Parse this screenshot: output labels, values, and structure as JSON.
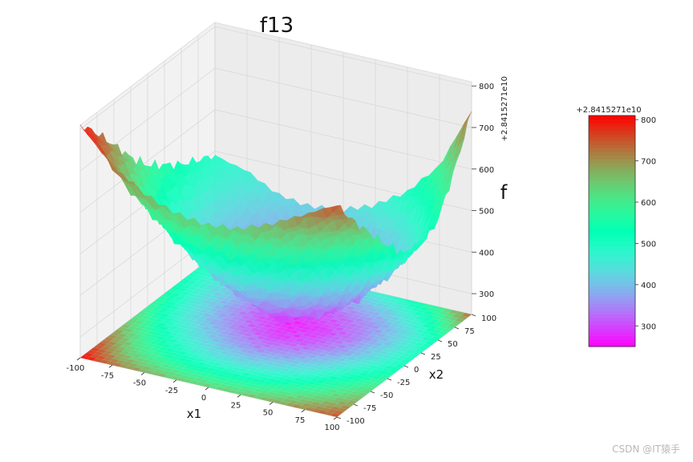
{
  "chart_data": {
    "type": "surface",
    "title": "f13",
    "xlabel": "x1",
    "ylabel": "x2",
    "zlabel": "f",
    "xlim": [
      -100,
      100
    ],
    "ylim": [
      -100,
      100
    ],
    "zlim": [
      250,
      810
    ],
    "x_ticks": [
      -100,
      -75,
      -50,
      -25,
      0,
      25,
      50,
      75,
      100
    ],
    "y_ticks": [
      -100,
      -75,
      -50,
      -25,
      0,
      25,
      50,
      75,
      100
    ],
    "z_ticks": [
      300,
      400,
      500,
      600,
      700,
      800
    ],
    "z_offset_text": "+2.8415271e10",
    "colormap": "rainbow",
    "has_floor_contour": true,
    "surface_samples": {
      "x": [
        -100,
        -75,
        -50,
        -25,
        0,
        25,
        50,
        75,
        100
      ],
      "y": [
        -100,
        -75,
        -50,
        -25,
        0,
        25,
        50,
        75,
        100
      ],
      "z": [
        [
          810,
          760,
          700,
          640,
          590,
          560,
          530,
          510,
          490
        ],
        [
          730,
          640,
          580,
          520,
          470,
          450,
          440,
          450,
          470
        ],
        [
          680,
          580,
          500,
          440,
          390,
          370,
          380,
          400,
          430
        ],
        [
          650,
          540,
          450,
          380,
          330,
          310,
          330,
          370,
          420
        ],
        [
          640,
          530,
          430,
          350,
          290,
          270,
          300,
          360,
          430
        ],
        [
          650,
          540,
          450,
          370,
          310,
          290,
          320,
          380,
          460
        ],
        [
          680,
          580,
          490,
          420,
          360,
          340,
          360,
          420,
          510
        ],
        [
          720,
          630,
          560,
          490,
          440,
          420,
          430,
          500,
          590
        ],
        [
          760,
          690,
          630,
          570,
          520,
          510,
          540,
          630,
          740
        ]
      ]
    }
  },
  "colorbar": {
    "offset_text": "+2.8415271e10",
    "ticks": [
      300,
      400,
      500,
      600,
      700,
      800
    ],
    "range": [
      250,
      810
    ]
  },
  "watermark": "CSDN @IT猿手"
}
